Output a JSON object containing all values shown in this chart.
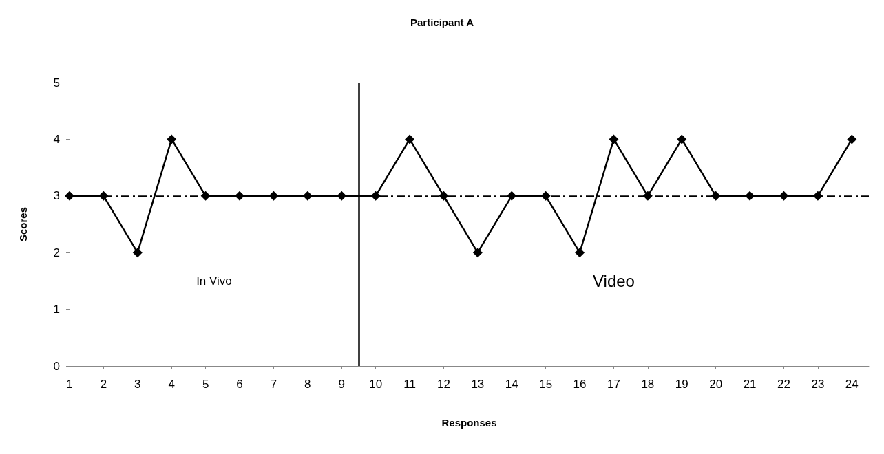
{
  "chart_data": {
    "type": "line",
    "title": "Participant A",
    "xlabel": "Responses",
    "ylabel": "Scores",
    "x": [
      1,
      2,
      3,
      4,
      5,
      6,
      7,
      8,
      9,
      10,
      11,
      12,
      13,
      14,
      15,
      16,
      17,
      18,
      19,
      20,
      21,
      22,
      23,
      24
    ],
    "series": [
      {
        "color": "#000000",
        "values": [
          3,
          3,
          2,
          4,
          3,
          3,
          3,
          3,
          3,
          3,
          4,
          3,
          2,
          3,
          3,
          2,
          4,
          3,
          4,
          3,
          3,
          3,
          3,
          4
        ]
      }
    ],
    "xlim": [
      1,
      24.5
    ],
    "xticks": [
      1,
      2,
      3,
      4,
      5,
      6,
      7,
      8,
      9,
      10,
      11,
      12,
      13,
      14,
      15,
      16,
      17,
      18,
      19,
      20,
      21,
      22,
      23,
      24
    ],
    "ylim": [
      0,
      5
    ],
    "yticks": [
      0,
      1,
      2,
      3,
      4,
      5
    ],
    "ref_lines": [
      {
        "axis": "x",
        "value": 9.5,
        "color": "#000000",
        "line_style": "solid"
      },
      {
        "axis": "y",
        "value": 3,
        "color": "#000000",
        "line_style": "dashed"
      }
    ],
    "annotations": [
      "In Vivo",
      "Video"
    ],
    "grid": false,
    "marker": "diamond",
    "line_style": "solid"
  }
}
